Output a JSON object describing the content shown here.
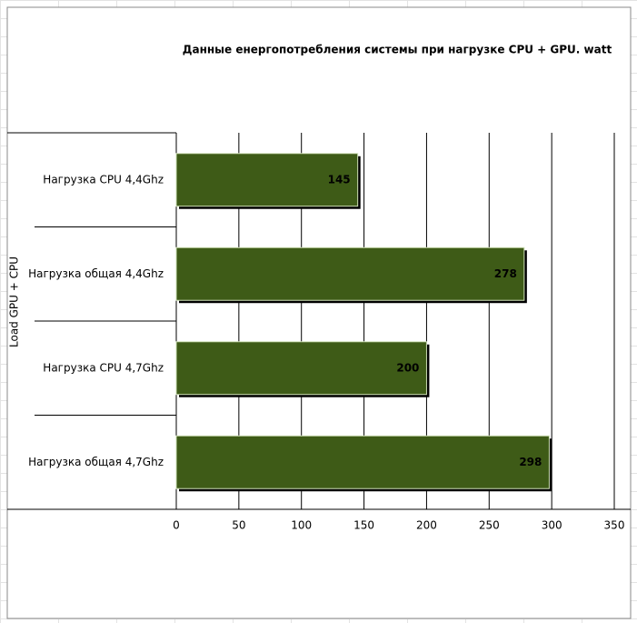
{
  "chart_data": {
    "type": "barh",
    "title": "Данные енергопотребления  системы при нагрузке CPU + GPU. watt",
    "y_label": "Load GPU + CPU",
    "categories": [
      "Нагрузка CPU 4,4Ghz",
      "Нагрузка общая 4,4Ghz",
      "Нагрузка CPU 4,7Ghz",
      "Нагрузка общая  4,7Ghz"
    ],
    "values": [
      145,
      278,
      200,
      298
    ],
    "color": "#3e5b17",
    "xlim": [
      0,
      350
    ],
    "xticks": [
      0,
      50,
      100,
      150,
      200,
      250,
      300,
      350
    ],
    "grid": true
  }
}
